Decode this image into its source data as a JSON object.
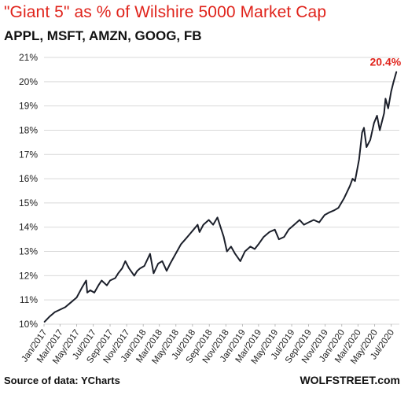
{
  "header": {
    "title": "\"Giant 5\" as % of Wilshire 5000 Market Cap",
    "subtitle": "APPL, MSFT, AMZN, GOOG, FB"
  },
  "footer": {
    "source": "Source of data: YCharts",
    "credit": "WOLFSTREET.com"
  },
  "colors": {
    "title": "#e0231b",
    "line": "#1b1f2a",
    "gridline": "#d9d9d9",
    "end_label": "#e0231b"
  },
  "chart_data": {
    "type": "line",
    "title": "\"Giant 5\" as % of Wilshire 5000 Market Cap",
    "subtitle": "APPL, MSFT, AMZN, GOOG, FB",
    "ylim": [
      10,
      21
    ],
    "yticks": [
      "10%",
      "11%",
      "12%",
      "13%",
      "14%",
      "15%",
      "16%",
      "17%",
      "18%",
      "19%",
      "20%",
      "21%"
    ],
    "xlim": [
      "2017-01",
      "2020-07"
    ],
    "xticks": [
      "Jan/2017",
      "Mar/2017",
      "May/2017",
      "Jul/2017",
      "Sep/2017",
      "Nov/2017",
      "Jan/2018",
      "Mar/2018",
      "May/2018",
      "Jul/2018",
      "Sep/2018",
      "Nov/2018",
      "Jan/2019",
      "Mar/2019",
      "May/2019",
      "Jul/2019",
      "Sep/2019",
      "Nov/2019",
      "Jan/2020",
      "Mar/2020",
      "May/2020",
      "Jul/2020"
    ],
    "grid": true,
    "end_label": "20.4%",
    "series": [
      {
        "x": [
          "2017-01-03",
          "2017-01-20",
          "2017-02-10",
          "2017-03-01",
          "2017-03-20",
          "2017-04-10",
          "2017-05-01",
          "2017-05-20",
          "2017-06-05",
          "2017-06-09",
          "2017-06-20",
          "2017-07-05",
          "2017-07-20",
          "2017-08-01",
          "2017-08-20",
          "2017-09-01",
          "2017-09-20",
          "2017-10-01",
          "2017-10-15",
          "2017-10-27",
          "2017-11-10",
          "2017-11-29",
          "2017-12-10",
          "2017-12-20",
          "2018-01-05",
          "2018-01-26",
          "2018-02-08",
          "2018-02-25",
          "2018-03-12",
          "2018-03-28",
          "2018-04-10",
          "2018-04-30",
          "2018-05-20",
          "2018-06-05",
          "2018-06-20",
          "2018-07-05",
          "2018-07-20",
          "2018-07-27",
          "2018-08-10",
          "2018-08-30",
          "2018-09-15",
          "2018-10-01",
          "2018-10-24",
          "2018-11-05",
          "2018-11-20",
          "2018-12-05",
          "2018-12-24",
          "2019-01-10",
          "2019-01-30",
          "2019-02-15",
          "2019-03-01",
          "2019-03-20",
          "2019-04-10",
          "2019-04-30",
          "2019-05-15",
          "2019-06-03",
          "2019-06-20",
          "2019-07-10",
          "2019-07-30",
          "2019-08-15",
          "2019-09-01",
          "2019-09-20",
          "2019-10-10",
          "2019-10-30",
          "2019-11-15",
          "2019-12-05",
          "2019-12-20",
          "2020-01-10",
          "2020-01-31",
          "2020-02-10",
          "2020-02-19",
          "2020-03-05",
          "2020-03-16",
          "2020-03-23",
          "2020-04-01",
          "2020-04-15",
          "2020-04-29",
          "2020-05-10",
          "2020-05-20",
          "2020-06-05",
          "2020-06-10",
          "2020-06-20",
          "2020-07-01",
          "2020-07-10",
          "2020-07-20"
        ],
        "values": [
          10.1,
          10.3,
          10.5,
          10.6,
          10.7,
          10.9,
          11.1,
          11.5,
          11.8,
          11.3,
          11.4,
          11.3,
          11.6,
          11.8,
          11.6,
          11.8,
          11.9,
          12.1,
          12.3,
          12.6,
          12.3,
          12.0,
          12.2,
          12.3,
          12.4,
          12.9,
          12.1,
          12.5,
          12.6,
          12.2,
          12.5,
          12.9,
          13.3,
          13.5,
          13.7,
          13.9,
          14.1,
          13.8,
          14.1,
          14.3,
          14.1,
          14.4,
          13.6,
          13.0,
          13.2,
          12.9,
          12.6,
          13.0,
          13.2,
          13.1,
          13.3,
          13.6,
          13.8,
          13.9,
          13.5,
          13.6,
          13.9,
          14.1,
          14.3,
          14.1,
          14.2,
          14.3,
          14.2,
          14.5,
          14.6,
          14.7,
          14.8,
          15.2,
          15.7,
          16.0,
          15.9,
          16.8,
          17.9,
          18.1,
          17.3,
          17.6,
          18.3,
          18.6,
          18.0,
          18.7,
          19.3,
          18.9,
          19.6,
          20.0,
          20.4
        ]
      }
    ]
  }
}
